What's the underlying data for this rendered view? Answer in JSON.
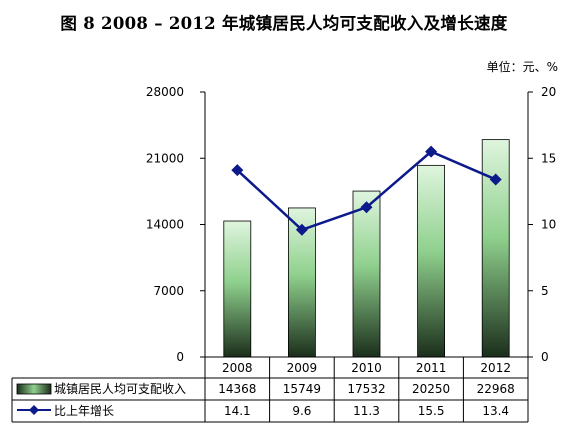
{
  "title": "图 8    2008 – 2012 年城镇居民人均可支配收入及增长速度",
  "unit": "单位：元、%",
  "chart_data": {
    "type": "bar",
    "categories": [
      "2008",
      "2009",
      "2010",
      "2011",
      "2012"
    ],
    "series": [
      {
        "name": "城镇居民人均可支配收入",
        "type": "bar",
        "axis": "left",
        "values": [
          14368,
          15749,
          17532,
          20250,
          22968
        ],
        "table_values": [
          "14368",
          "15749",
          "17532",
          "20250",
          "22968"
        ]
      },
      {
        "name": "比上年增长",
        "type": "line",
        "axis": "right",
        "values": [
          14.1,
          9.6,
          11.3,
          15.5,
          13.4
        ],
        "table_values": [
          "14.1",
          "9.6",
          "11.3",
          "15.5",
          "13.4"
        ]
      }
    ],
    "left_axis": {
      "ylim": [
        0,
        28000
      ],
      "ticks": [
        "0",
        "7000",
        "14000",
        "21000",
        "28000"
      ]
    },
    "right_axis": {
      "ylim": [
        0,
        20
      ],
      "ticks": [
        "0",
        "5",
        "10",
        "15",
        "20"
      ]
    },
    "legend": "data-table",
    "grid": false,
    "colors": {
      "bar_top": "#dff5de",
      "bar_bottom": "#1b2e1b",
      "line": "#0d1a8c",
      "axis": "#000000"
    }
  }
}
